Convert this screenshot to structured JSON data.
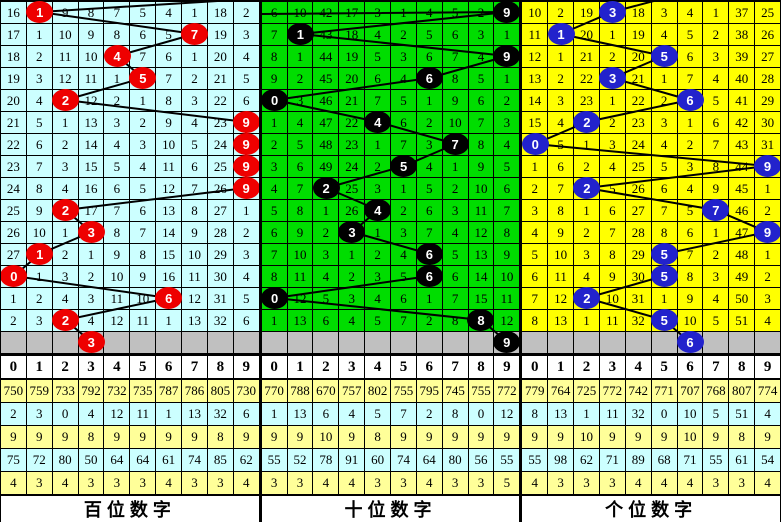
{
  "board": {
    "columns": [
      "0",
      "1",
      "2",
      "3",
      "4",
      "5",
      "6",
      "7",
      "8",
      "9"
    ],
    "colors": {
      "grid_line": "#000000",
      "trend_line": "#000000",
      "pending_row": "#C0C0C0",
      "header_bg": "#FFFFFF",
      "title_bg": "#FFFFFF",
      "stats_row_bgs": [
        "#FFFF99",
        "#CCFFFF",
        "#FFFF99",
        "#CCFFFF",
        "#FFFF99"
      ]
    }
  },
  "chart_data": {
    "type": "table",
    "panels": [
      {
        "name": "百位数字",
        "drawn_digits": [
          1,
          7,
          4,
          5,
          2,
          9,
          9,
          9,
          9,
          2,
          3,
          1,
          0,
          6,
          2
        ],
        "pending_digit": 3
      },
      {
        "name": "十位数字",
        "drawn_digits": [
          9,
          1,
          9,
          6,
          0,
          4,
          7,
          5,
          2,
          4,
          3,
          6,
          6,
          0,
          8
        ],
        "pending_digit": 9
      },
      {
        "name": "个位数字",
        "drawn_digits": [
          3,
          1,
          5,
          3,
          6,
          2,
          0,
          9,
          2,
          7,
          9,
          5,
          5,
          2,
          5
        ],
        "pending_digit": 6
      }
    ]
  },
  "panels": [
    {
      "id": "hundreds",
      "title": "百位数字",
      "bg": "#CCFFFF",
      "ball_color": "#EE0000",
      "entry_point": [
        0.965,
        -2
      ],
      "rows": [
        {
          "cells": [
            "16",
            "1",
            "9",
            "8",
            "7",
            "5",
            "4",
            "1",
            "18",
            "2"
          ],
          "ball_col": 1
        },
        {
          "cells": [
            "17",
            "1",
            "10",
            "9",
            "8",
            "6",
            "5",
            "7",
            "19",
            "3"
          ],
          "ball_col": 7
        },
        {
          "cells": [
            "18",
            "2",
            "11",
            "10",
            "4",
            "7",
            "6",
            "1",
            "20",
            "4"
          ],
          "ball_col": 4
        },
        {
          "cells": [
            "19",
            "3",
            "12",
            "11",
            "1",
            "5",
            "7",
            "2",
            "21",
            "5"
          ],
          "ball_col": 5
        },
        {
          "cells": [
            "20",
            "4",
            "2",
            "12",
            "2",
            "1",
            "8",
            "3",
            "22",
            "6"
          ],
          "ball_col": 2
        },
        {
          "cells": [
            "21",
            "5",
            "1",
            "13",
            "3",
            "2",
            "9",
            "4",
            "23",
            "9"
          ],
          "ball_col": 9
        },
        {
          "cells": [
            "22",
            "6",
            "2",
            "14",
            "4",
            "3",
            "10",
            "5",
            "24",
            "9"
          ],
          "ball_col": 9
        },
        {
          "cells": [
            "23",
            "7",
            "3",
            "15",
            "5",
            "4",
            "11",
            "6",
            "25",
            "9"
          ],
          "ball_col": 9
        },
        {
          "cells": [
            "24",
            "8",
            "4",
            "16",
            "6",
            "5",
            "12",
            "7",
            "26",
            "9"
          ],
          "ball_col": 9
        },
        {
          "cells": [
            "25",
            "9",
            "2",
            "17",
            "7",
            "6",
            "13",
            "8",
            "27",
            "1"
          ],
          "ball_col": 2
        },
        {
          "cells": [
            "26",
            "10",
            "1",
            "3",
            "8",
            "7",
            "14",
            "9",
            "28",
            "2"
          ],
          "ball_col": 3
        },
        {
          "cells": [
            "27",
            "1",
            "2",
            "1",
            "9",
            "8",
            "15",
            "10",
            "29",
            "3"
          ],
          "ball_col": 1
        },
        {
          "cells": [
            "0",
            "1",
            "3",
            "2",
            "10",
            "9",
            "16",
            "11",
            "30",
            "4"
          ],
          "ball_col": 0
        },
        {
          "cells": [
            "1",
            "2",
            "4",
            "3",
            "11",
            "10",
            "6",
            "12",
            "31",
            "5"
          ],
          "ball_col": 6
        },
        {
          "cells": [
            "2",
            "3",
            "2",
            "4",
            "12",
            "11",
            "1",
            "13",
            "32",
            "6"
          ],
          "ball_col": 2
        }
      ],
      "next_ball": {
        "col": 3,
        "value": "3"
      },
      "stats": [
        [
          "750",
          "759",
          "733",
          "792",
          "732",
          "735",
          "787",
          "786",
          "805",
          "730"
        ],
        [
          "2",
          "3",
          "0",
          "4",
          "12",
          "11",
          "1",
          "13",
          "32",
          "6"
        ],
        [
          "9",
          "9",
          "9",
          "8",
          "9",
          "9",
          "9",
          "9",
          "8",
          "9"
        ],
        [
          "75",
          "72",
          "80",
          "50",
          "64",
          "64",
          "61",
          "74",
          "85",
          "62"
        ],
        [
          "4",
          "3",
          "4",
          "3",
          "3",
          "3",
          "4",
          "3",
          "3",
          "4"
        ]
      ]
    },
    {
      "id": "tens",
      "title": "十位数字",
      "bg": "#00DD00",
      "ball_color": "#000000",
      "entry_point": [
        0.0,
        13
      ],
      "rows": [
        {
          "cells": [
            "6",
            "10",
            "42",
            "17",
            "3",
            "1",
            "4",
            "5",
            "2",
            "9"
          ],
          "ball_col": 9
        },
        {
          "cells": [
            "7",
            "1",
            "43",
            "18",
            "4",
            "2",
            "5",
            "6",
            "3",
            "1"
          ],
          "ball_col": 1
        },
        {
          "cells": [
            "8",
            "1",
            "44",
            "19",
            "5",
            "3",
            "6",
            "7",
            "4",
            "9"
          ],
          "ball_col": 9
        },
        {
          "cells": [
            "9",
            "2",
            "45",
            "20",
            "6",
            "4",
            "6",
            "8",
            "5",
            "1"
          ],
          "ball_col": 6
        },
        {
          "cells": [
            "0",
            "3",
            "46",
            "21",
            "7",
            "5",
            "1",
            "9",
            "6",
            "2"
          ],
          "ball_col": 0
        },
        {
          "cells": [
            "1",
            "4",
            "47",
            "22",
            "4",
            "6",
            "2",
            "10",
            "7",
            "3"
          ],
          "ball_col": 4
        },
        {
          "cells": [
            "2",
            "5",
            "48",
            "23",
            "1",
            "7",
            "3",
            "7",
            "8",
            "4"
          ],
          "ball_col": 7
        },
        {
          "cells": [
            "3",
            "6",
            "49",
            "24",
            "2",
            "5",
            "4",
            "1",
            "9",
            "5"
          ],
          "ball_col": 5
        },
        {
          "cells": [
            "4",
            "7",
            "2",
            "25",
            "3",
            "1",
            "5",
            "2",
            "10",
            "6"
          ],
          "ball_col": 2
        },
        {
          "cells": [
            "5",
            "8",
            "1",
            "26",
            "4",
            "2",
            "6",
            "3",
            "11",
            "7"
          ],
          "ball_col": 4
        },
        {
          "cells": [
            "6",
            "9",
            "2",
            "3",
            "1",
            "3",
            "7",
            "4",
            "12",
            "8"
          ],
          "ball_col": 3
        },
        {
          "cells": [
            "7",
            "10",
            "3",
            "1",
            "2",
            "4",
            "6",
            "5",
            "13",
            "9"
          ],
          "ball_col": 6
        },
        {
          "cells": [
            "8",
            "11",
            "4",
            "2",
            "3",
            "5",
            "6",
            "6",
            "14",
            "10"
          ],
          "ball_col": 6
        },
        {
          "cells": [
            "0",
            "12",
            "5",
            "3",
            "4",
            "6",
            "1",
            "7",
            "15",
            "11"
          ],
          "ball_col": 0
        },
        {
          "cells": [
            "1",
            "13",
            "6",
            "4",
            "5",
            "7",
            "2",
            "8",
            "8",
            "12"
          ],
          "ball_col": 8
        }
      ],
      "next_ball": {
        "col": 9,
        "value": "9"
      },
      "stats": [
        [
          "770",
          "788",
          "670",
          "757",
          "802",
          "755",
          "795",
          "745",
          "755",
          "772"
        ],
        [
          "1",
          "13",
          "6",
          "4",
          "5",
          "7",
          "2",
          "8",
          "0",
          "12"
        ],
        [
          "9",
          "9",
          "10",
          "9",
          "8",
          "9",
          "9",
          "9",
          "9",
          "9"
        ],
        [
          "55",
          "52",
          "78",
          "91",
          "60",
          "74",
          "64",
          "80",
          "56",
          "55"
        ],
        [
          "3",
          "3",
          "4",
          "4",
          "3",
          "3",
          "4",
          "3",
          "3",
          "5"
        ]
      ]
    },
    {
      "id": "units",
      "title": "个位数字",
      "bg": "#FFFF00",
      "ball_color": "#2222CC",
      "entry_point": [
        0.54,
        -2
      ],
      "rows": [
        {
          "cells": [
            "10",
            "2",
            "19",
            "3",
            "18",
            "3",
            "4",
            "1",
            "37",
            "25"
          ],
          "ball_col": 3
        },
        {
          "cells": [
            "11",
            "1",
            "20",
            "1",
            "19",
            "4",
            "5",
            "2",
            "38",
            "26"
          ],
          "ball_col": 1
        },
        {
          "cells": [
            "12",
            "1",
            "21",
            "2",
            "20",
            "5",
            "6",
            "3",
            "39",
            "27"
          ],
          "ball_col": 5
        },
        {
          "cells": [
            "13",
            "2",
            "22",
            "3",
            "21",
            "1",
            "7",
            "4",
            "40",
            "28"
          ],
          "ball_col": 3
        },
        {
          "cells": [
            "14",
            "3",
            "23",
            "1",
            "22",
            "2",
            "6",
            "5",
            "41",
            "29"
          ],
          "ball_col": 6
        },
        {
          "cells": [
            "15",
            "4",
            "2",
            "2",
            "23",
            "3",
            "1",
            "6",
            "42",
            "30"
          ],
          "ball_col": 2
        },
        {
          "cells": [
            "0",
            "5",
            "1",
            "3",
            "24",
            "4",
            "2",
            "7",
            "43",
            "31"
          ],
          "ball_col": 0
        },
        {
          "cells": [
            "1",
            "6",
            "2",
            "4",
            "25",
            "5",
            "3",
            "8",
            "44",
            "9"
          ],
          "ball_col": 9
        },
        {
          "cells": [
            "2",
            "7",
            "2",
            "5",
            "26",
            "6",
            "4",
            "9",
            "45",
            "1"
          ],
          "ball_col": 2
        },
        {
          "cells": [
            "3",
            "8",
            "1",
            "6",
            "27",
            "7",
            "5",
            "7",
            "46",
            "2"
          ],
          "ball_col": 7
        },
        {
          "cells": [
            "4",
            "9",
            "2",
            "7",
            "28",
            "8",
            "6",
            "1",
            "47",
            "9"
          ],
          "ball_col": 9
        },
        {
          "cells": [
            "5",
            "10",
            "3",
            "8",
            "29",
            "5",
            "7",
            "2",
            "48",
            "1"
          ],
          "ball_col": 5
        },
        {
          "cells": [
            "6",
            "11",
            "4",
            "9",
            "30",
            "5",
            "8",
            "3",
            "49",
            "2"
          ],
          "ball_col": 5
        },
        {
          "cells": [
            "7",
            "12",
            "2",
            "10",
            "31",
            "1",
            "9",
            "4",
            "50",
            "3"
          ],
          "ball_col": 2
        },
        {
          "cells": [
            "8",
            "13",
            "1",
            "11",
            "32",
            "5",
            "10",
            "5",
            "51",
            "4"
          ],
          "ball_col": 5
        }
      ],
      "next_ball": {
        "col": 6,
        "value": "6"
      },
      "stats": [
        [
          "779",
          "764",
          "725",
          "772",
          "742",
          "771",
          "707",
          "768",
          "807",
          "774"
        ],
        [
          "8",
          "13",
          "1",
          "11",
          "32",
          "0",
          "10",
          "5",
          "51",
          "4"
        ],
        [
          "9",
          "9",
          "10",
          "9",
          "9",
          "9",
          "10",
          "9",
          "8",
          "9"
        ],
        [
          "55",
          "98",
          "62",
          "71",
          "89",
          "68",
          "71",
          "55",
          "61",
          "54"
        ],
        [
          "4",
          "3",
          "3",
          "3",
          "4",
          "4",
          "4",
          "3",
          "3",
          "4"
        ]
      ]
    }
  ]
}
